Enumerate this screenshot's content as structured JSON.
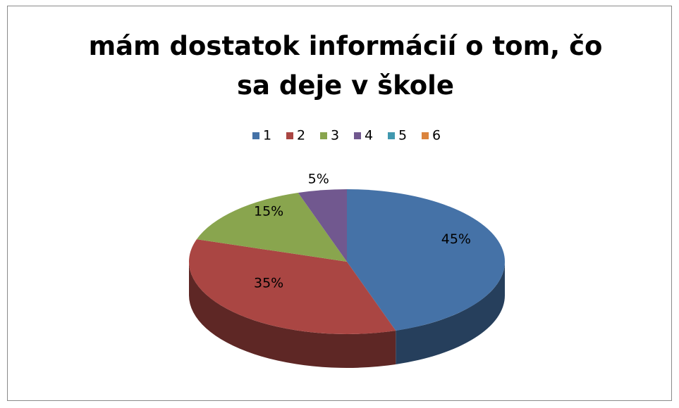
{
  "chart_data": {
    "type": "pie3d",
    "title": "mám dostatok informácií o tom, čo sa deje v škole",
    "categories": [
      "1",
      "2",
      "3",
      "4",
      "5",
      "6"
    ],
    "values": [
      45,
      35,
      15,
      5,
      0,
      0
    ],
    "value_labels": [
      "45%",
      "35%",
      "15%",
      "5%",
      null,
      null
    ],
    "colors": [
      "#4572a7",
      "#aa4643",
      "#89a54e",
      "#71588f",
      "#4198af",
      "#db843d"
    ],
    "legend": "top"
  }
}
